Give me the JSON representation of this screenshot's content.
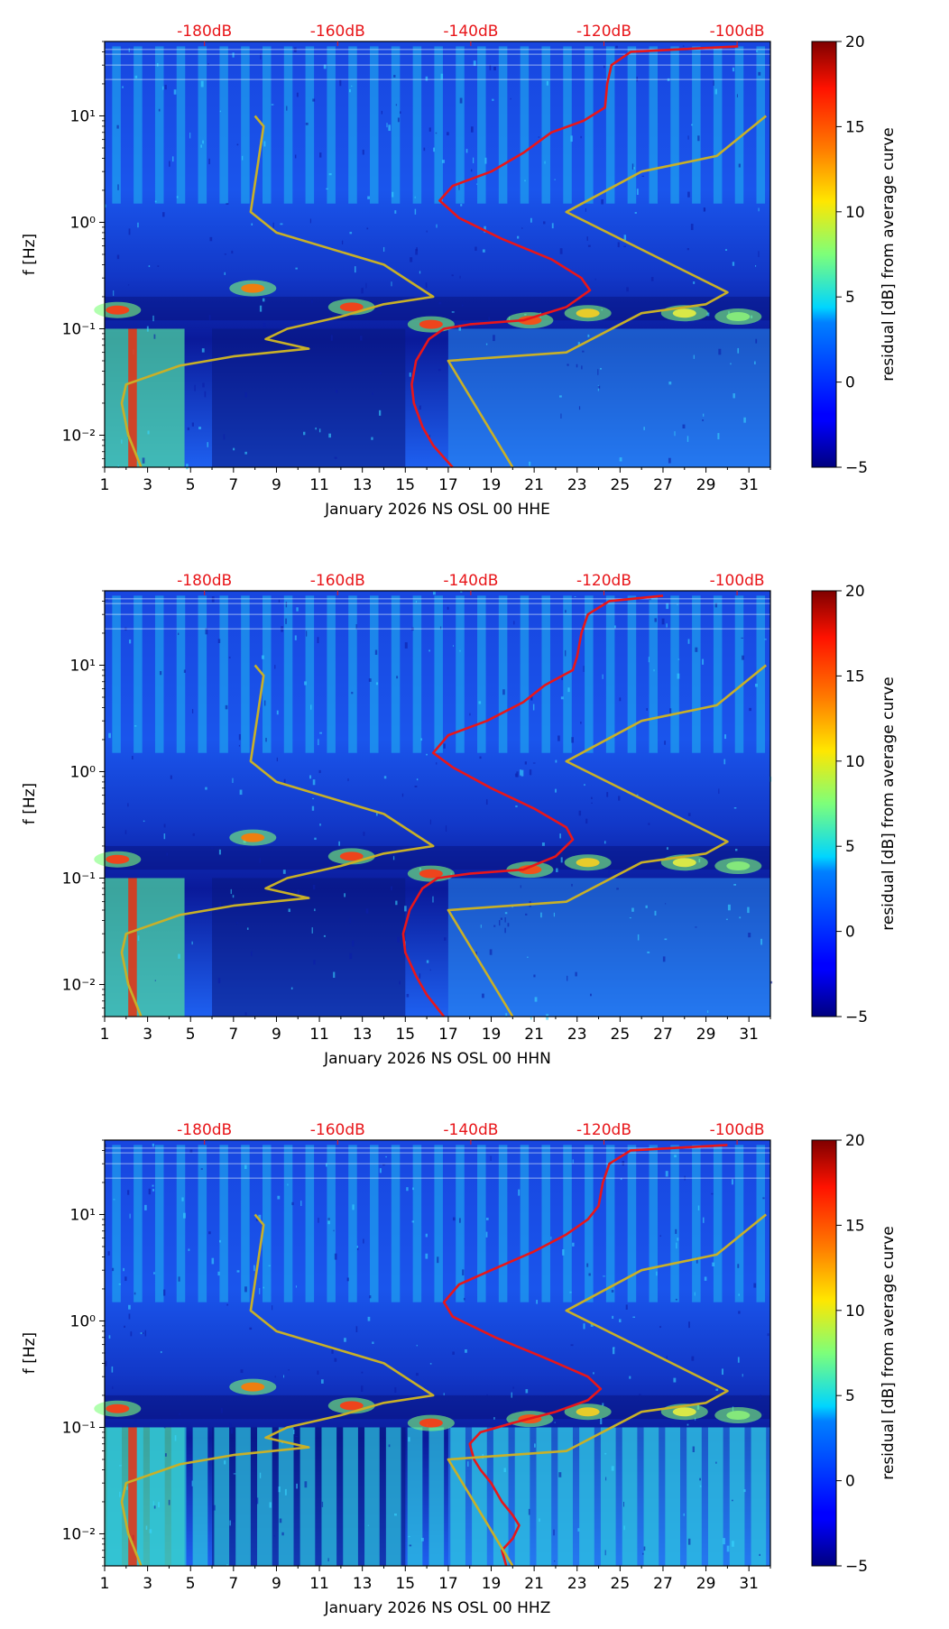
{
  "chart_data": [
    {
      "type": "heatmap",
      "channel": "HHE",
      "xlabel": "January 2026 NS OSL 00 HHE",
      "ylabel": "f [Hz]",
      "colorbar_label": "residual [dB] from average curve",
      "x_range": [
        1,
        32
      ],
      "y_scale": "log",
      "y_range": [
        0.005,
        50
      ],
      "x_ticks": [
        "1",
        "3",
        "5",
        "7",
        "9",
        "11",
        "13",
        "15",
        "17",
        "19",
        "21",
        "23",
        "25",
        "27",
        "29",
        "31"
      ],
      "y_ticks": [
        {
          "value": 0.01,
          "label": "10⁻²"
        },
        {
          "value": 0.1,
          "label": "10⁻¹"
        },
        {
          "value": 1,
          "label": "10⁰"
        },
        {
          "value": 10,
          "label": "10¹"
        }
      ],
      "colorbar_range": [
        -5,
        20
      ],
      "colorbar_ticks": [
        "−5",
        "0",
        "5",
        "10",
        "15",
        "20"
      ],
      "top_axis_labels": [
        "-180dB",
        "-160dB",
        "-140dB",
        "-120dB",
        "-100dB"
      ],
      "top_axis_db": [
        -180,
        -160,
        -140,
        -120,
        -100
      ],
      "lines": [
        {
          "name": "red-psd-curve",
          "color": "#e8161a",
          "points": [
            [
              17.2,
              0.005
            ],
            [
              16.3,
              0.008
            ],
            [
              15.8,
              0.012
            ],
            [
              15.4,
              0.02
            ],
            [
              15.3,
              0.03
            ],
            [
              15.5,
              0.05
            ],
            [
              16.1,
              0.08
            ],
            [
              16.8,
              0.1
            ],
            [
              18,
              0.11
            ],
            [
              20.5,
              0.12
            ],
            [
              22.5,
              0.16
            ],
            [
              23.6,
              0.23
            ],
            [
              23.2,
              0.3
            ],
            [
              21.8,
              0.45
            ],
            [
              19.5,
              0.7
            ],
            [
              17.5,
              1.1
            ],
            [
              16.6,
              1.6
            ],
            [
              17.2,
              2.2
            ],
            [
              19,
              3
            ],
            [
              20.5,
              4.5
            ],
            [
              21.8,
              7
            ],
            [
              23.3,
              9
            ],
            [
              24.3,
              12
            ],
            [
              24.4,
              20
            ],
            [
              24.6,
              30
            ],
            [
              25.5,
              40
            ],
            [
              30.5,
              45
            ]
          ]
        },
        {
          "name": "low-noise-model",
          "color": "#c8b028",
          "points": [
            [
              20,
              0.005
            ],
            [
              17,
              0.05
            ],
            [
              22.5,
              0.06
            ],
            [
              26,
              0.14
            ],
            [
              29,
              0.17
            ],
            [
              30,
              0.22
            ],
            [
              22.5,
              1.25
            ],
            [
              26,
              3
            ],
            [
              29.5,
              4.2
            ],
            [
              31.8,
              10
            ]
          ]
        },
        {
          "name": "high-noise-model",
          "color": "#c8b028",
          "points": [
            [
              2.7,
              0.005
            ],
            [
              2.1,
              0.01
            ],
            [
              1.8,
              0.02
            ],
            [
              2,
              0.03
            ],
            [
              4.5,
              0.045
            ],
            [
              7,
              0.055
            ],
            [
              10.5,
              0.065
            ],
            [
              8.5,
              0.08
            ],
            [
              9.5,
              0.1
            ],
            [
              12,
              0.13
            ],
            [
              14,
              0.17
            ],
            [
              16.3,
              0.2
            ],
            [
              14,
              0.4
            ],
            [
              9,
              0.8
            ],
            [
              7.8,
              1.25
            ],
            [
              8.4,
              8
            ],
            [
              8,
              10
            ]
          ]
        }
      ]
    },
    {
      "type": "heatmap",
      "channel": "HHN",
      "xlabel": "January 2026 NS OSL 00 HHN",
      "ylabel": "f [Hz]",
      "colorbar_label": "residual [dB] from average curve",
      "x_range": [
        1,
        32
      ],
      "y_scale": "log",
      "y_range": [
        0.005,
        50
      ],
      "x_ticks": [
        "1",
        "3",
        "5",
        "7",
        "9",
        "11",
        "13",
        "15",
        "17",
        "19",
        "21",
        "23",
        "25",
        "27",
        "29",
        "31"
      ],
      "y_ticks": [
        {
          "value": 0.01,
          "label": "10⁻²"
        },
        {
          "value": 0.1,
          "label": "10⁻¹"
        },
        {
          "value": 1,
          "label": "10⁰"
        },
        {
          "value": 10,
          "label": "10¹"
        }
      ],
      "colorbar_range": [
        -5,
        20
      ],
      "colorbar_ticks": [
        "−5",
        "0",
        "5",
        "10",
        "15",
        "20"
      ],
      "top_axis_labels": [
        "-180dB",
        "-160dB",
        "-140dB",
        "-120dB",
        "-100dB"
      ],
      "top_axis_db": [
        -180,
        -160,
        -140,
        -120,
        -100
      ],
      "lines": [
        {
          "name": "red-psd-curve",
          "color": "#e8161a",
          "points": [
            [
              16.8,
              0.005
            ],
            [
              16,
              0.008
            ],
            [
              15.5,
              0.012
            ],
            [
              15,
              0.02
            ],
            [
              14.9,
              0.03
            ],
            [
              15.2,
              0.05
            ],
            [
              15.8,
              0.08
            ],
            [
              16.5,
              0.1
            ],
            [
              18,
              0.11
            ],
            [
              20.5,
              0.12
            ],
            [
              22,
              0.16
            ],
            [
              22.8,
              0.23
            ],
            [
              22.5,
              0.3
            ],
            [
              21,
              0.45
            ],
            [
              19,
              0.7
            ],
            [
              17.2,
              1.1
            ],
            [
              16.3,
              1.5
            ],
            [
              17,
              2.2
            ],
            [
              18.8,
              3
            ],
            [
              20.5,
              4.5
            ],
            [
              21.5,
              6.5
            ],
            [
              22.8,
              9
            ],
            [
              23,
              12
            ],
            [
              23.2,
              20
            ],
            [
              23.5,
              30
            ],
            [
              24.5,
              40
            ],
            [
              27,
              45
            ]
          ]
        },
        {
          "name": "low-noise-model",
          "color": "#c8b028",
          "points": [
            [
              20,
              0.005
            ],
            [
              17,
              0.05
            ],
            [
              22.5,
              0.06
            ],
            [
              26,
              0.14
            ],
            [
              29,
              0.17
            ],
            [
              30,
              0.22
            ],
            [
              22.5,
              1.25
            ],
            [
              26,
              3
            ],
            [
              29.5,
              4.2
            ],
            [
              31.8,
              10
            ]
          ]
        },
        {
          "name": "high-noise-model",
          "color": "#c8b028",
          "points": [
            [
              2.7,
              0.005
            ],
            [
              2.1,
              0.01
            ],
            [
              1.8,
              0.02
            ],
            [
              2,
              0.03
            ],
            [
              4.5,
              0.045
            ],
            [
              7,
              0.055
            ],
            [
              10.5,
              0.065
            ],
            [
              8.5,
              0.08
            ],
            [
              9.5,
              0.1
            ],
            [
              12,
              0.13
            ],
            [
              14,
              0.17
            ],
            [
              16.3,
              0.2
            ],
            [
              14,
              0.4
            ],
            [
              9,
              0.8
            ],
            [
              7.8,
              1.25
            ],
            [
              8.4,
              8
            ],
            [
              8,
              10
            ]
          ]
        }
      ]
    },
    {
      "type": "heatmap",
      "channel": "HHZ",
      "xlabel": "January 2026 NS OSL 00 HHZ",
      "ylabel": "f [Hz]",
      "colorbar_label": "residual [dB] from average curve",
      "x_range": [
        1,
        32
      ],
      "y_scale": "log",
      "y_range": [
        0.005,
        50
      ],
      "x_ticks": [
        "1",
        "3",
        "5",
        "7",
        "9",
        "11",
        "13",
        "15",
        "17",
        "19",
        "21",
        "23",
        "25",
        "27",
        "29",
        "31"
      ],
      "y_ticks": [
        {
          "value": 0.01,
          "label": "10⁻²"
        },
        {
          "value": 0.1,
          "label": "10⁻¹"
        },
        {
          "value": 1,
          "label": "10⁰"
        },
        {
          "value": 10,
          "label": "10¹"
        }
      ],
      "colorbar_range": [
        -5,
        20
      ],
      "colorbar_ticks": [
        "−5",
        "0",
        "5",
        "10",
        "15",
        "20"
      ],
      "top_axis_labels": [
        "-180dB",
        "-160dB",
        "-140dB",
        "-120dB",
        "-100dB"
      ],
      "top_axis_db": [
        -180,
        -160,
        -140,
        -120,
        -100
      ],
      "lines": [
        {
          "name": "red-psd-curve",
          "color": "#e8161a",
          "points": [
            [
              19.7,
              0.005
            ],
            [
              19.5,
              0.007
            ],
            [
              20,
              0.009
            ],
            [
              20.3,
              0.012
            ],
            [
              20,
              0.015
            ],
            [
              19.5,
              0.02
            ],
            [
              19,
              0.03
            ],
            [
              18.5,
              0.04
            ],
            [
              18.2,
              0.05
            ],
            [
              18,
              0.07
            ],
            [
              18.5,
              0.09
            ],
            [
              20,
              0.11
            ],
            [
              22,
              0.14
            ],
            [
              23.5,
              0.18
            ],
            [
              24.1,
              0.23
            ],
            [
              23.5,
              0.3
            ],
            [
              21.5,
              0.45
            ],
            [
              19.2,
              0.7
            ],
            [
              17.2,
              1.1
            ],
            [
              16.8,
              1.5
            ],
            [
              17.5,
              2.2
            ],
            [
              19,
              3
            ],
            [
              21,
              4.5
            ],
            [
              22.5,
              6.5
            ],
            [
              23.5,
              9
            ],
            [
              24,
              12
            ],
            [
              24.2,
              20
            ],
            [
              24.5,
              30
            ],
            [
              25.5,
              40
            ],
            [
              30,
              45
            ]
          ]
        },
        {
          "name": "low-noise-model",
          "color": "#c8b028",
          "points": [
            [
              20,
              0.005
            ],
            [
              17,
              0.05
            ],
            [
              22.5,
              0.06
            ],
            [
              26,
              0.14
            ],
            [
              29,
              0.17
            ],
            [
              30,
              0.22
            ],
            [
              22.5,
              1.25
            ],
            [
              26,
              3
            ],
            [
              29.5,
              4.2
            ],
            [
              31.8,
              10
            ]
          ]
        },
        {
          "name": "high-noise-model",
          "color": "#c8b028",
          "points": [
            [
              2.7,
              0.005
            ],
            [
              2.1,
              0.01
            ],
            [
              1.8,
              0.02
            ],
            [
              2,
              0.03
            ],
            [
              4.5,
              0.045
            ],
            [
              7,
              0.055
            ],
            [
              10.5,
              0.065
            ],
            [
              8.5,
              0.08
            ],
            [
              9.5,
              0.1
            ],
            [
              12,
              0.13
            ],
            [
              14,
              0.17
            ],
            [
              16.3,
              0.2
            ],
            [
              14,
              0.4
            ],
            [
              9,
              0.8
            ],
            [
              7.8,
              1.25
            ],
            [
              8.4,
              8
            ],
            [
              8,
              10
            ]
          ]
        }
      ]
    }
  ],
  "colors": {
    "top_label": "#e8161a",
    "red_curve": "#e8161a",
    "model_curve": "#c8b028",
    "jet_low": "#00007f",
    "jet_high": "#7f0000"
  }
}
